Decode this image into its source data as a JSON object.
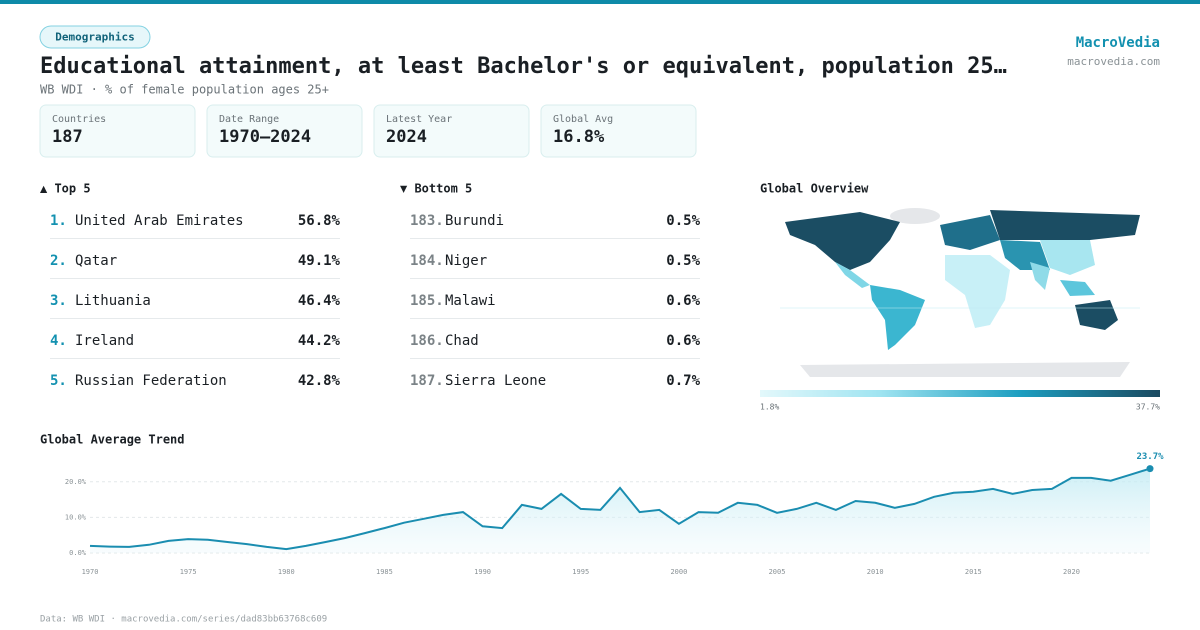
{
  "header": {
    "tag": "Demographics",
    "title": "Educational attainment, at least Bachelor's or equivalent, population 25…",
    "subtitle": "WB WDI · % of female population ages 25+",
    "brand": "MacroVedia",
    "url": "macrovedia.com"
  },
  "stats": [
    {
      "label": "Countries",
      "value": "187"
    },
    {
      "label": "Date Range",
      "value": "1970–2024"
    },
    {
      "label": "Latest Year",
      "value": "2024"
    },
    {
      "label": "Global Avg",
      "value": "16.8%"
    }
  ],
  "top5": {
    "heading": "▲ Top 5",
    "rows": [
      {
        "rank": "1.",
        "name": "United Arab Emirates",
        "value": "56.8%"
      },
      {
        "rank": "2.",
        "name": "Qatar",
        "value": "49.1%"
      },
      {
        "rank": "3.",
        "name": "Lithuania",
        "value": "46.4%"
      },
      {
        "rank": "4.",
        "name": "Ireland",
        "value": "44.2%"
      },
      {
        "rank": "5.",
        "name": "Russian Federation",
        "value": "42.8%"
      }
    ]
  },
  "bottom5": {
    "heading": "▼ Bottom 5",
    "rows": [
      {
        "rank": "183.",
        "name": "Burundi",
        "value": "0.5%"
      },
      {
        "rank": "184.",
        "name": "Niger",
        "value": "0.5%"
      },
      {
        "rank": "185.",
        "name": "Malawi",
        "value": "0.6%"
      },
      {
        "rank": "186.",
        "name": "Chad",
        "value": "0.6%"
      },
      {
        "rank": "187.",
        "name": "Sierra Leone",
        "value": "0.7%"
      }
    ]
  },
  "map": {
    "title": "Global Overview",
    "legend_min": "1.8%",
    "legend_max": "37.7%"
  },
  "chart_data": {
    "type": "line",
    "title": "Global Average Trend",
    "x": [
      1970,
      1971,
      1972,
      1973,
      1974,
      1975,
      1976,
      1977,
      1978,
      1979,
      1980,
      1981,
      1982,
      1983,
      1984,
      1985,
      1986,
      1987,
      1988,
      1989,
      1990,
      1991,
      1992,
      1993,
      1994,
      1995,
      1996,
      1997,
      1998,
      1999,
      2000,
      2001,
      2002,
      2003,
      2004,
      2005,
      2006,
      2007,
      2008,
      2009,
      2010,
      2011,
      2012,
      2013,
      2014,
      2015,
      2016,
      2017,
      2018,
      2019,
      2020,
      2021,
      2022,
      2023,
      2024
    ],
    "values": [
      2.0,
      1.8,
      1.7,
      2.3,
      3.4,
      3.9,
      3.7,
      3.1,
      2.5,
      1.7,
      1.1,
      2.0,
      3.1,
      4.2,
      5.6,
      7.0,
      8.5,
      9.6,
      10.7,
      11.5,
      7.5,
      7.0,
      13.5,
      12.4,
      16.6,
      12.4,
      12.1,
      18.3,
      11.5,
      12.1,
      8.2,
      11.5,
      11.3,
      14.1,
      13.5,
      11.3,
      12.4,
      14.1,
      12.1,
      14.6,
      14.1,
      12.7,
      13.8,
      15.8,
      16.9,
      17.2,
      18.0,
      16.6,
      17.7,
      18.0,
      21.1,
      21.1,
      20.3,
      22.0,
      23.7
    ],
    "value_labels": [
      null,
      null,
      null,
      null,
      null,
      null,
      null,
      null,
      null,
      null,
      null,
      null,
      null,
      null,
      null,
      null,
      null,
      null,
      null,
      null,
      null,
      null,
      null,
      null,
      null,
      null,
      null,
      null,
      null,
      null,
      null,
      null,
      null,
      null,
      null,
      null,
      null,
      null,
      null,
      null,
      null,
      null,
      null,
      null,
      null,
      null,
      null,
      null,
      null,
      null,
      null,
      null,
      null,
      null,
      "23.7%"
    ],
    "color": "#1a8db0",
    "xlim": [
      1970,
      2024
    ],
    "ylim": [
      0,
      25
    ],
    "yticks": [
      {
        "value": 0,
        "label": "0.0%"
      },
      {
        "value": 10,
        "label": "10.0%"
      },
      {
        "value": 20,
        "label": "20.0%"
      }
    ],
    "xticks": [
      1970,
      1975,
      1980,
      1985,
      1990,
      1995,
      2000,
      2005,
      2010,
      2015,
      2020
    ],
    "grid": true
  },
  "footer": "Data: WB WDI · macrovedia.com/series/dad83bb63768c609"
}
